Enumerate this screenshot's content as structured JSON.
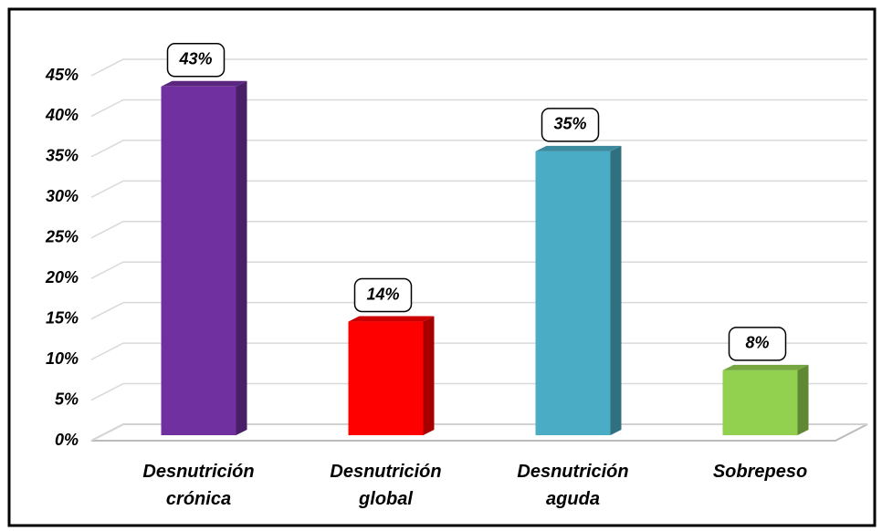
{
  "chart_data": {
    "type": "bar",
    "categories": [
      "Desnutrición crónica",
      "Desnutrición global",
      "Desnutrición aguda",
      "Sobrepeso"
    ],
    "values": [
      43,
      14,
      35,
      8
    ],
    "value_labels": [
      "43%",
      "14%",
      "35%",
      "8%"
    ],
    "colors": [
      "#7030a0",
      "#ff0000",
      "#4bacc6",
      "#92d050"
    ],
    "ylim": [
      0,
      45
    ],
    "yticks": [
      {
        "value": 0,
        "label": "0%"
      },
      {
        "value": 5,
        "label": "5%"
      },
      {
        "value": 10,
        "label": "10%"
      },
      {
        "value": 15,
        "label": "15%"
      },
      {
        "value": 20,
        "label": "20%"
      },
      {
        "value": 25,
        "label": "25%"
      },
      {
        "value": 30,
        "label": "30%"
      },
      {
        "value": 35,
        "label": "35%"
      },
      {
        "value": 40,
        "label": "40%"
      },
      {
        "value": 45,
        "label": "45%"
      }
    ],
    "grid": true
  }
}
